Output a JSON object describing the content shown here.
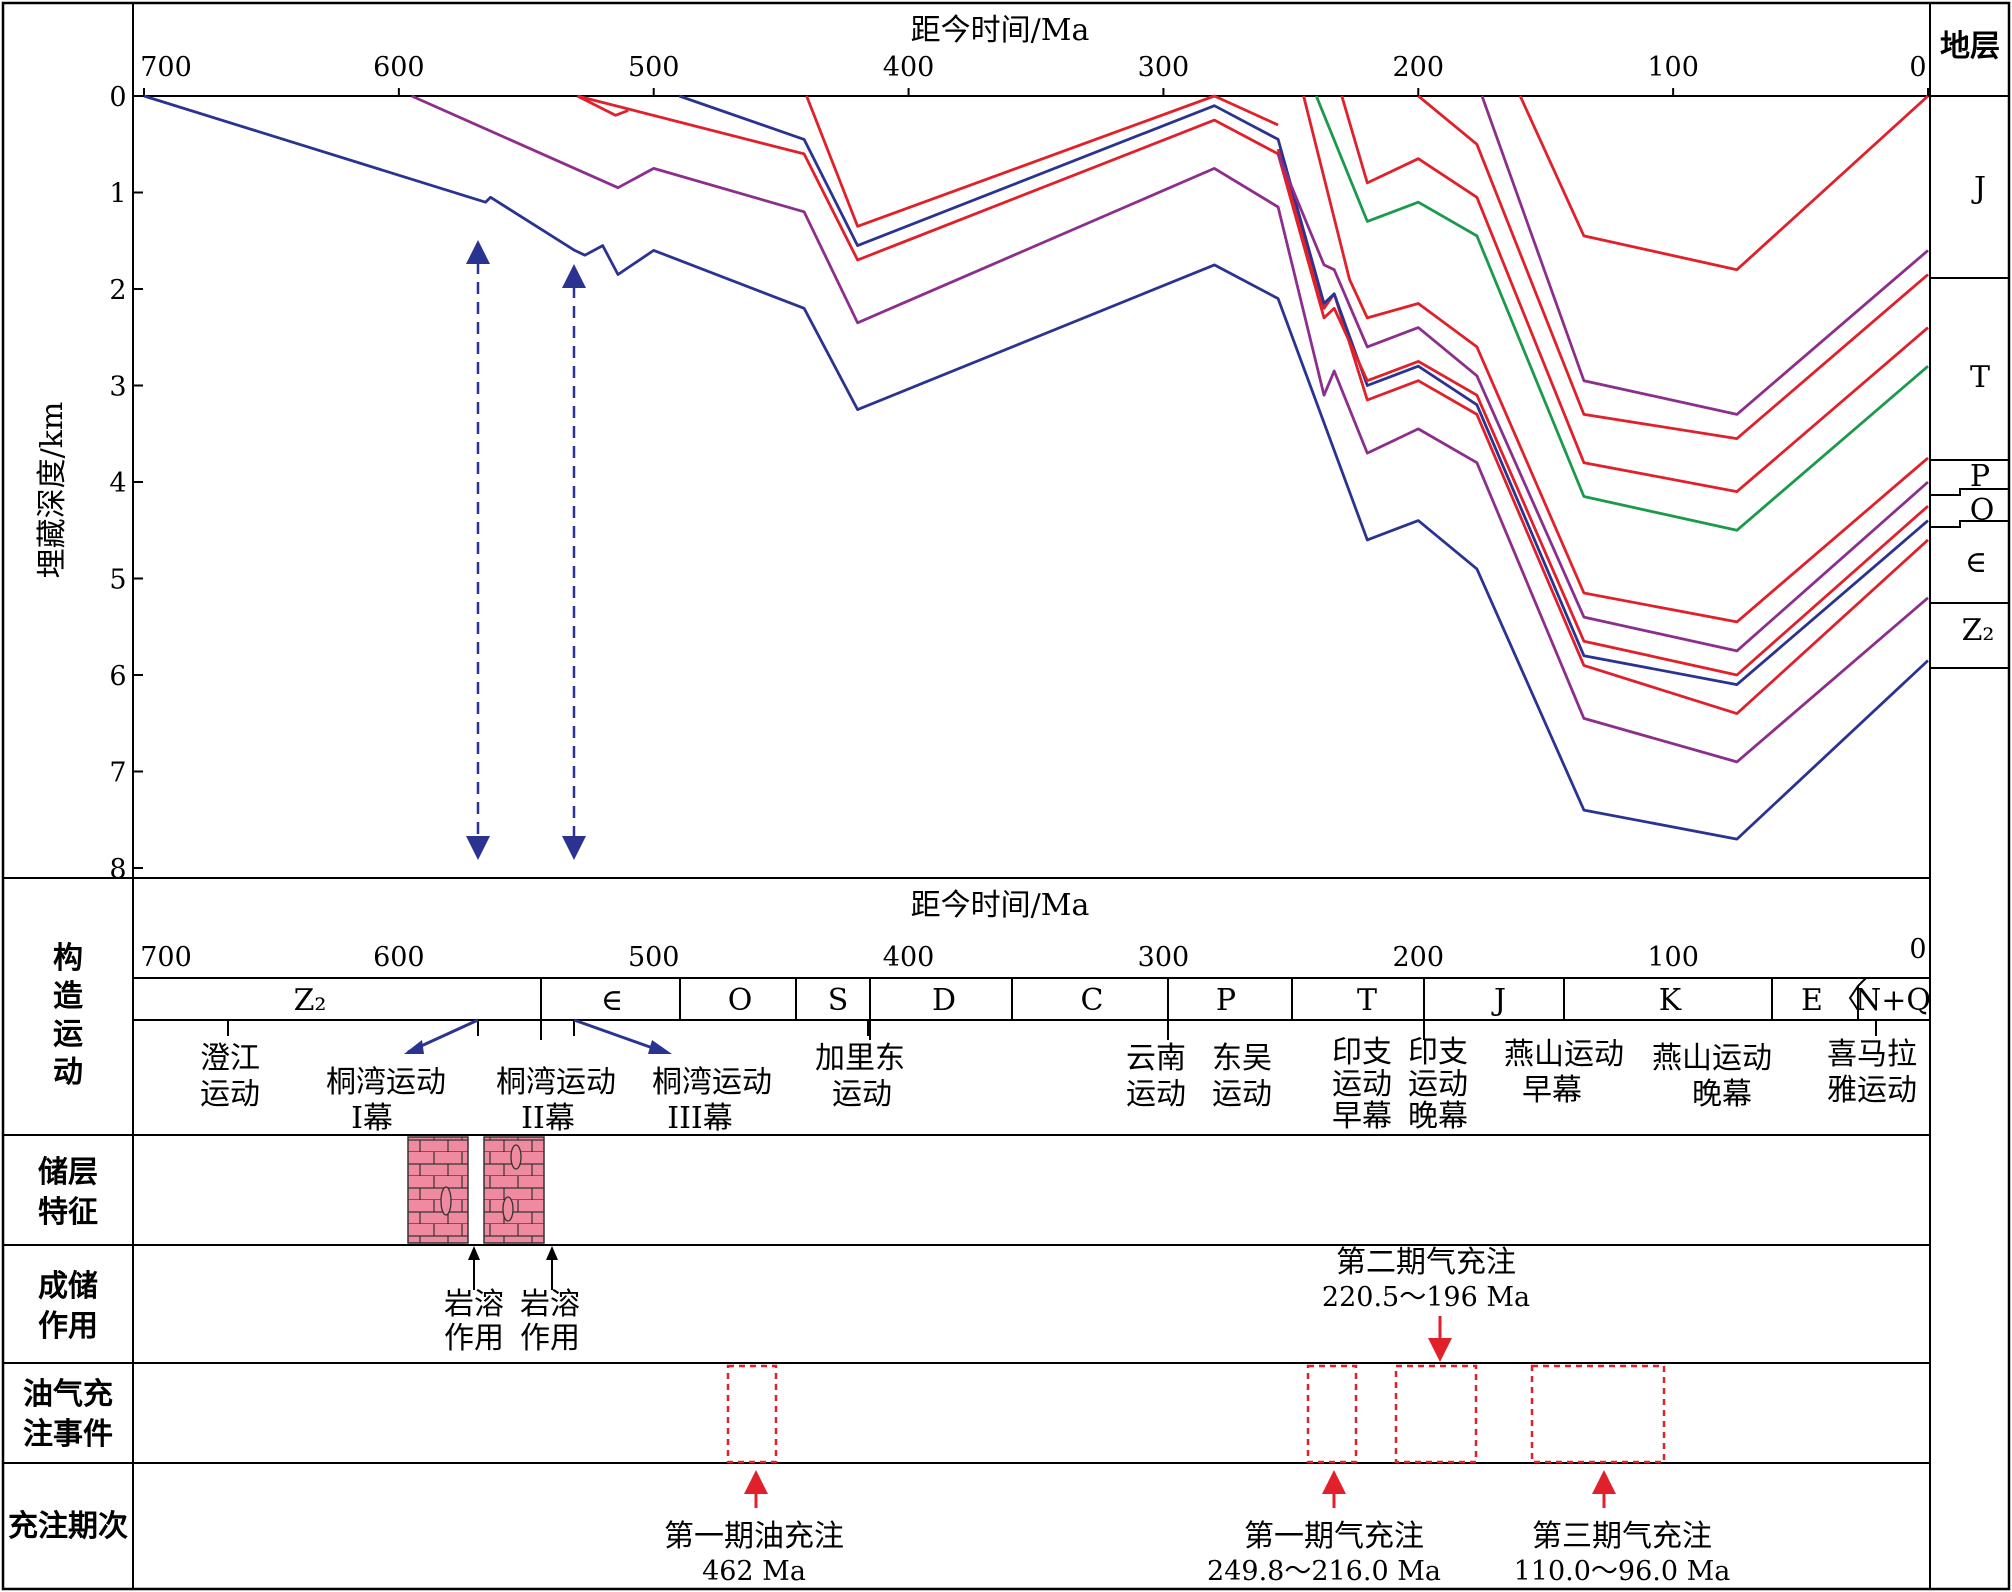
{
  "burial_chart": {
    "time_axis_title": "距今时间/Ma",
    "depth_axis_title": "埋藏深度/km",
    "strata_header": "地层",
    "time_ticks": [
      "700",
      "600",
      "500",
      "400",
      "300",
      "200",
      "100",
      "0"
    ],
    "depth_ticks": [
      "0",
      "1",
      "2",
      "3",
      "4",
      "5",
      "6",
      "7",
      "8"
    ],
    "strata_labels": [
      "J",
      "T",
      "P",
      "O",
      "∈",
      "Z₂"
    ]
  },
  "lower_panel": {
    "time_axis_title": "距今时间/Ma",
    "time_ticks": [
      "700",
      "600",
      "500",
      "400",
      "300",
      "200",
      "100",
      "0"
    ],
    "periods": [
      "Z₂",
      "∈",
      "O",
      "S",
      "D",
      "C",
      "P",
      "T",
      "J",
      "K",
      "E",
      "N+Q"
    ],
    "row_tectonic": [
      "构",
      "造",
      "运",
      "动"
    ],
    "row_reservoir": [
      "储层",
      "特征"
    ],
    "row_diagenesis": [
      "成储",
      "作用"
    ],
    "row_charging": [
      "油气充",
      "注事件"
    ],
    "row_stage": [
      "充注期次"
    ],
    "tectonic_events": [
      [
        "澄江",
        "运动"
      ],
      [
        "桐湾运动",
        "I幕"
      ],
      [
        "桐湾运动",
        "II幕"
      ],
      [
        "桐湾运动",
        "III幕"
      ],
      [
        "加里东",
        "运动"
      ],
      [
        "云南",
        "运动"
      ],
      [
        "东吴",
        "运动"
      ],
      [
        "印支",
        "运动",
        "早幕"
      ],
      [
        "印支",
        "运动",
        "晚幕"
      ],
      [
        "燕山运动",
        "早幕"
      ],
      [
        "燕山运动",
        "晚幕"
      ],
      [
        "喜马拉",
        "雅运动"
      ]
    ],
    "karst_labels": [
      [
        "岩溶",
        "作用"
      ],
      [
        "岩溶",
        "作用"
      ]
    ],
    "charge_events": {
      "first_oil": [
        "第一期油充注",
        "462 Ma"
      ],
      "first_gas": [
        "第一期气充注",
        "249.8～216.0 Ma"
      ],
      "second_gas": [
        "第二期气充注",
        "220.5～196 Ma"
      ],
      "third_gas": [
        "第三期气充注",
        "110.0～96.0 Ma"
      ]
    }
  },
  "colors": {
    "blue": "#2a3490",
    "purple": "#8c2f8c",
    "red": "#e0202a",
    "green": "#1a9a4a",
    "pink": "#f08aa0"
  },
  "chart_data": {
    "type": "line",
    "xlabel": "距今时间/Ma",
    "ylabel": "埋藏深度/km",
    "xlim": [
      700,
      0
    ],
    "ylim": [
      0,
      8
    ],
    "series": [
      {
        "color": "blue",
        "points": [
          [
            700,
            0
          ],
          [
            566,
            1.1
          ],
          [
            564,
            1.05
          ],
          [
            531,
            1.6
          ],
          [
            527,
            1.65
          ],
          [
            520,
            1.55
          ],
          [
            514,
            1.85
          ],
          [
            500,
            1.6
          ],
          [
            441,
            2.2
          ],
          [
            420,
            3.25
          ],
          [
            280,
            1.75
          ],
          [
            255,
            2.1
          ],
          [
            220,
            4.6
          ],
          [
            200,
            4.4
          ],
          [
            177,
            4.9
          ],
          [
            135,
            7.4
          ],
          [
            75,
            7.7
          ],
          [
            0,
            5.85
          ]
        ]
      },
      {
        "color": "purple",
        "points": [
          [
            595,
            0
          ],
          [
            514,
            0.95
          ],
          [
            500,
            0.75
          ],
          [
            441,
            1.2
          ],
          [
            420,
            2.35
          ],
          [
            280,
            0.75
          ],
          [
            255,
            1.15
          ],
          [
            237,
            3.1
          ],
          [
            233,
            2.85
          ],
          [
            220,
            3.7
          ],
          [
            200,
            3.45
          ],
          [
            177,
            3.8
          ],
          [
            135,
            6.45
          ],
          [
            75,
            6.9
          ],
          [
            0,
            5.2
          ]
        ]
      },
      {
        "color": "red",
        "points": [
          [
            255,
            0.55
          ],
          [
            237,
            2.2
          ],
          [
            233,
            2.05
          ],
          [
            220,
            3.15
          ],
          [
            200,
            2.95
          ],
          [
            177,
            3.3
          ],
          [
            135,
            5.9
          ],
          [
            75,
            6.4
          ],
          [
            0,
            4.6
          ]
        ]
      },
      {
        "color": "blue",
        "points": [
          [
            490,
            0
          ],
          [
            441,
            0.45
          ],
          [
            420,
            1.55
          ],
          [
            280,
            0.1
          ],
          [
            255,
            0.45
          ],
          [
            237,
            2.15
          ],
          [
            233,
            2.05
          ],
          [
            220,
            3.0
          ],
          [
            200,
            2.8
          ],
          [
            177,
            3.2
          ],
          [
            135,
            5.8
          ],
          [
            75,
            6.1
          ],
          [
            0,
            4.4
          ]
        ]
      },
      {
        "color": "red",
        "points": [
          [
            530,
            0
          ],
          [
            441,
            0.6
          ],
          [
            420,
            1.7
          ],
          [
            280,
            0.25
          ],
          [
            255,
            0.6
          ],
          [
            237,
            2.3
          ],
          [
            233,
            2.2
          ],
          [
            220,
            2.95
          ],
          [
            200,
            2.75
          ],
          [
            177,
            3.1
          ],
          [
            135,
            5.65
          ],
          [
            75,
            6.0
          ],
          [
            0,
            4.25
          ]
        ]
      },
      {
        "color": "purple",
        "points": [
          [
            255,
            0.6
          ],
          [
            237,
            1.75
          ],
          [
            233,
            1.8
          ],
          [
            220,
            2.6
          ],
          [
            200,
            2.4
          ],
          [
            177,
            2.9
          ],
          [
            135,
            5.4
          ],
          [
            75,
            5.75
          ],
          [
            0,
            4.0
          ]
        ]
      },
      {
        "color": "red",
        "points": [
          [
            245,
            0
          ],
          [
            227,
            1.9
          ],
          [
            220,
            2.3
          ],
          [
            200,
            2.15
          ],
          [
            177,
            2.6
          ],
          [
            135,
            5.15
          ],
          [
            75,
            5.45
          ],
          [
            0,
            3.75
          ]
        ]
      },
      {
        "color": "red",
        "points": [
          [
            440,
            0
          ],
          [
            420,
            1.35
          ],
          [
            280,
            0.0
          ],
          [
            255,
            0.3
          ]
        ]
      },
      {
        "color": "green",
        "points": [
          [
            240,
            0
          ],
          [
            220,
            1.3
          ],
          [
            200,
            1.1
          ],
          [
            177,
            1.45
          ],
          [
            135,
            4.15
          ],
          [
            75,
            4.5
          ],
          [
            0,
            2.8
          ]
        ]
      },
      {
        "color": "red",
        "points": [
          [
            230,
            0
          ],
          [
            220,
            0.9
          ],
          [
            200,
            0.65
          ],
          [
            177,
            1.05
          ],
          [
            135,
            3.8
          ],
          [
            75,
            4.1
          ],
          [
            0,
            2.4
          ]
        ]
      },
      {
        "color": "red",
        "points": [
          [
            200,
            0
          ],
          [
            177,
            0.5
          ],
          [
            135,
            3.3
          ],
          [
            75,
            3.55
          ],
          [
            0,
            1.85
          ]
        ]
      },
      {
        "color": "purple",
        "points": [
          [
            175,
            0
          ],
          [
            135,
            2.95
          ],
          [
            75,
            3.3
          ],
          [
            0,
            1.6
          ]
        ]
      },
      {
        "color": "red",
        "points": [
          [
            160,
            0
          ],
          [
            135,
            1.45
          ],
          [
            75,
            1.8
          ],
          [
            0,
            0
          ]
        ]
      },
      {
        "color": "red",
        "points": [
          [
            530,
            0
          ],
          [
            515,
            0.2
          ],
          [
            510,
            0.15
          ]
        ]
      }
    ]
  }
}
